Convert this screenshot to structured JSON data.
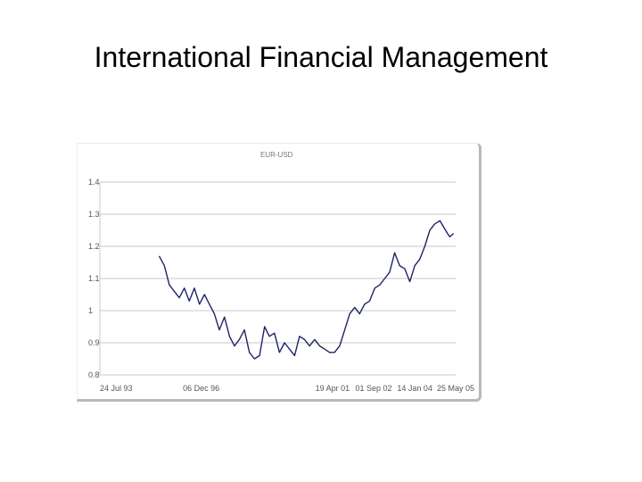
{
  "slide": {
    "title": "International Financial Management"
  },
  "colors": {
    "series_line": "#1f2366",
    "grid": "#c8c8c8",
    "frame_shadow": "#b9b9b9"
  },
  "chart_data": {
    "type": "line",
    "title": "EUR-USD",
    "xlabel": "",
    "ylabel": "",
    "ylim": [
      0.8,
      1.4
    ],
    "yticks": [
      "1.4",
      "1.3",
      "1.2",
      "1.1",
      "1",
      "0.9",
      "0.8"
    ],
    "ytick_values": [
      1.4,
      1.3,
      1.2,
      1.1,
      1.0,
      0.9,
      0.8
    ],
    "xlim": [
      "1993-07-24",
      "2005-05-25"
    ],
    "xticks": [
      "24 Jul 93",
      "06 Dec 96",
      "19 Apr 01",
      "01 Sep 02",
      "14 Jan 04",
      "25 May 05"
    ],
    "xtick_dates": [
      "1993-07-24",
      "1996-12-06",
      "2001-04-19",
      "2002-09-01",
      "2004-01-14",
      "2005-05-25"
    ],
    "grid": "horizontal",
    "legend": "none",
    "series": [
      {
        "x": [
          "1995-07-15",
          "1995-09-15",
          "1995-11-15",
          "1996-01-15",
          "1996-03-15",
          "1996-05-15",
          "1996-07-15",
          "1996-09-15",
          "1996-11-15",
          "1997-01-15",
          "1997-03-15",
          "1997-05-15",
          "1997-07-15",
          "1997-09-15",
          "1997-11-15",
          "1998-01-15",
          "1998-03-15",
          "1998-05-15",
          "1998-07-15",
          "1998-09-15",
          "1998-11-15",
          "1999-01-15",
          "1999-03-15",
          "1999-05-15",
          "1999-07-15",
          "1999-09-15",
          "1999-11-15",
          "2000-01-15",
          "2000-03-15",
          "2000-05-15",
          "2000-07-15",
          "2000-09-15",
          "2000-11-15",
          "2001-01-15",
          "2001-03-15",
          "2001-05-15",
          "2001-07-15",
          "2001-09-15",
          "2001-11-15",
          "2002-01-15",
          "2002-03-15",
          "2002-05-15",
          "2002-07-15",
          "2002-09-15",
          "2002-11-15",
          "2003-01-15",
          "2003-03-15",
          "2003-05-15",
          "2003-07-15",
          "2003-09-15",
          "2003-11-15",
          "2004-01-15",
          "2004-03-15",
          "2004-05-15",
          "2004-07-15",
          "2004-09-15",
          "2004-11-15",
          "2004-12-30",
          "2005-02-15",
          "2005-03-15",
          "2005-04-30"
        ],
        "values": [
          1.17,
          1.14,
          1.08,
          1.06,
          1.04,
          1.07,
          1.03,
          1.07,
          1.02,
          1.05,
          1.02,
          0.99,
          0.94,
          0.98,
          0.92,
          0.89,
          0.91,
          0.94,
          0.87,
          0.85,
          0.86,
          0.95,
          0.92,
          0.93,
          0.87,
          0.9,
          0.88,
          0.86,
          0.92,
          0.91,
          0.89,
          0.91,
          0.89,
          0.88,
          0.87,
          0.87,
          0.89,
          0.94,
          0.99,
          1.01,
          0.99,
          1.02,
          1.03,
          1.07,
          1.08,
          1.1,
          1.12,
          1.18,
          1.14,
          1.13,
          1.09,
          1.14,
          1.16,
          1.2,
          1.25,
          1.27,
          1.28,
          1.26,
          1.24,
          1.23,
          1.24
        ]
      }
    ]
  }
}
